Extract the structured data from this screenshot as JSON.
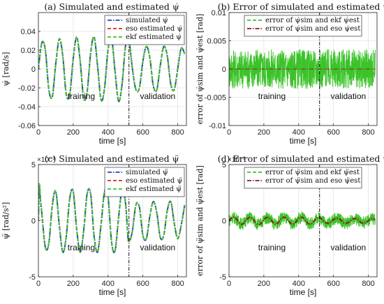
{
  "chart_data": [
    {
      "type": "line",
      "title": "(a) Simulated and estimated ψ̇",
      "xlabel": "time [s]",
      "ylabel": "ψ̇ [rad/s]",
      "xlim": [
        0,
        850
      ],
      "ylim": [
        -0.06,
        0.06
      ],
      "xticks": [
        0,
        200,
        400,
        600,
        800
      ],
      "yticks": [
        -0.06,
        -0.04,
        -0.02,
        0,
        0.02,
        0.04
      ],
      "ytick_labels": [
        "-0.06",
        "-0.04",
        "-0.02",
        "0",
        "0.02",
        "0.04"
      ],
      "exponent_label": "",
      "grid": true,
      "legend_position": "top-right",
      "split_x": 520,
      "annotations": [
        "training",
        "validation"
      ],
      "series": [
        {
          "name": "simulated ψ̇",
          "color": "#1f3fd0",
          "style": "dashdot",
          "x": [
            0,
            20,
            40,
            60,
            80,
            100,
            120,
            140,
            160,
            180,
            200,
            220,
            240,
            260,
            280,
            300,
            320,
            340,
            360,
            380,
            400,
            420,
            440,
            460,
            480,
            500,
            520,
            540,
            560,
            580,
            600,
            620,
            640,
            660,
            680,
            700,
            720,
            740,
            760,
            780,
            800,
            820,
            840
          ],
          "y": [
            0,
            0.028,
            0.02,
            -0.022,
            -0.029,
            0.006,
            0.032,
            0.014,
            -0.027,
            -0.027,
            0.011,
            0.034,
            0.008,
            -0.031,
            -0.024,
            0.017,
            0.034,
            0.003,
            -0.033,
            -0.02,
            0.021,
            0.033,
            -0.002,
            -0.034,
            -0.017,
            0.024,
            0.03,
            0,
            -0.022,
            -0.02,
            0.008,
            0.024,
            0.012,
            -0.018,
            -0.022,
            0.004,
            0.024,
            0.014,
            -0.016,
            -0.022,
            0,
            0.022,
            0.016
          ]
        },
        {
          "name": "eso estimated ψ̇",
          "color": "#d02a1a",
          "style": "dashed",
          "x": [
            0,
            20,
            40,
            60,
            80,
            100,
            120,
            140,
            160,
            180,
            200,
            220,
            240,
            260,
            280,
            300,
            320,
            340,
            360,
            380,
            400,
            420,
            440,
            460,
            480,
            500,
            520,
            540,
            560,
            580,
            600,
            620,
            640,
            660,
            680,
            700,
            720,
            740,
            760,
            780,
            800,
            820,
            840
          ],
          "y": [
            0,
            0.028,
            0.02,
            -0.022,
            -0.029,
            0.006,
            0.032,
            0.014,
            -0.027,
            -0.027,
            0.011,
            0.034,
            0.008,
            -0.031,
            -0.024,
            0.017,
            0.034,
            0.003,
            -0.033,
            -0.02,
            0.021,
            0.033,
            -0.002,
            -0.034,
            -0.017,
            0.024,
            0.03,
            0,
            -0.022,
            -0.02,
            0.008,
            0.024,
            0.012,
            -0.018,
            -0.022,
            0.004,
            0.024,
            0.014,
            -0.016,
            -0.022,
            0,
            0.022,
            0.016
          ]
        },
        {
          "name": "ekf estimated ψ̇",
          "color": "#3cc32a",
          "style": "dashed",
          "x": [
            0,
            20,
            40,
            60,
            80,
            100,
            120,
            140,
            160,
            180,
            200,
            220,
            240,
            260,
            280,
            300,
            320,
            340,
            360,
            380,
            400,
            420,
            440,
            460,
            480,
            500,
            520,
            540,
            560,
            580,
            600,
            620,
            640,
            660,
            680,
            700,
            720,
            740,
            760,
            780,
            800,
            820,
            840
          ],
          "y": [
            0,
            0.028,
            0.02,
            -0.022,
            -0.029,
            0.006,
            0.032,
            0.014,
            -0.027,
            -0.027,
            0.011,
            0.034,
            0.008,
            -0.031,
            -0.024,
            0.017,
            0.034,
            0.003,
            -0.033,
            -0.02,
            0.021,
            0.033,
            -0.002,
            -0.034,
            -0.017,
            0.024,
            0.03,
            0,
            -0.022,
            -0.02,
            0.008,
            0.024,
            0.012,
            -0.018,
            -0.022,
            0.004,
            0.024,
            0.014,
            -0.016,
            -0.022,
            0,
            0.022,
            0.016
          ]
        }
      ]
    },
    {
      "type": "line",
      "title": "(b) Error of simulated and estimated ψ̇",
      "xlabel": "time [s]",
      "ylabel": "error of ψ̇sim and ψ̇est [rad]",
      "xlim": [
        0,
        850
      ],
      "ylim": [
        -0.01,
        0.01
      ],
      "xticks": [
        0,
        200,
        400,
        600,
        800
      ],
      "yticks": [
        -0.01,
        -0.005,
        0,
        0.005,
        0.01
      ],
      "ytick_labels": [
        "-0.01",
        "-0.005",
        "0",
        "0.005",
        "0.01"
      ],
      "exponent_label": "",
      "grid": true,
      "legend_position": "top",
      "split_x": 520,
      "annotations": [
        "training",
        "validation"
      ],
      "series": [
        {
          "name": "error of ψ̇sim and ekf ψ̇est",
          "color": "#3cc32a",
          "style": "noise",
          "x": [
            0,
            840
          ],
          "y": [
            0,
            0
          ],
          "noise_amplitude": 0.0035
        },
        {
          "name": "error of ψ̇sim and eso ψ̇est",
          "color": "#8a1c1c",
          "style": "dashdot",
          "x": [
            0,
            840
          ],
          "y": [
            0,
            0
          ]
        }
      ]
    },
    {
      "type": "line",
      "title": "(c) Simulated and estimated ψ̈",
      "xlabel": "time [s]",
      "ylabel": "ψ̈ [rad/s²]",
      "xlim": [
        0,
        850
      ],
      "ylim": [
        -5,
        5
      ],
      "xticks": [
        0,
        200,
        400,
        600,
        800
      ],
      "yticks": [
        -5,
        0,
        5
      ],
      "ytick_labels": [
        "-5",
        "0",
        "5"
      ],
      "exponent_label": "×10⁻³",
      "grid": true,
      "legend_position": "top-right",
      "split_x": 520,
      "annotations": [
        "training",
        "validation"
      ],
      "series": [
        {
          "name": "simulated ψ̈",
          "color": "#1f3fd0",
          "style": "dashdot",
          "x": [
            0,
            5,
            10,
            20,
            40,
            60,
            80,
            100,
            120,
            140,
            160,
            180,
            200,
            220,
            240,
            260,
            280,
            300,
            320,
            340,
            360,
            380,
            400,
            420,
            440,
            460,
            480,
            500,
            515,
            520,
            525,
            540,
            560,
            580,
            600,
            620,
            640,
            660,
            680,
            700,
            720,
            740,
            760,
            780,
            800,
            820,
            840
          ],
          "y": [
            0,
            3.2,
            2.2,
            0.6,
            -2.4,
            -2,
            1.4,
            2.6,
            -0.4,
            -2.8,
            -1.4,
            2,
            2.6,
            -0.8,
            -2.8,
            -0.9,
            2.4,
            2.4,
            -1.4,
            -2.8,
            -0.3,
            2.6,
            2.1,
            -1.9,
            -2.7,
            0.2,
            2.7,
            1.6,
            -1.6,
            -1.6,
            -1.8,
            -0.9,
            1.4,
            1.2,
            -1.3,
            -1.6,
            0.4,
            1.7,
            0.7,
            -1.5,
            -1.3,
            0.9,
            1.7,
            -0.2,
            -1.6,
            -0.4,
            1.4
          ]
        },
        {
          "name": "eso estimated ψ̈",
          "color": "#d02a1a",
          "style": "dashed",
          "x": [
            0,
            5,
            10,
            20,
            40,
            60,
            80,
            100,
            120,
            140,
            160,
            180,
            200,
            220,
            240,
            260,
            280,
            300,
            320,
            340,
            360,
            380,
            400,
            420,
            440,
            460,
            480,
            500,
            515,
            520,
            525,
            540,
            560,
            580,
            600,
            620,
            640,
            660,
            680,
            700,
            720,
            740,
            760,
            780,
            800,
            820,
            840
          ],
          "y": [
            0,
            3.2,
            2.2,
            0.6,
            -2.4,
            -2,
            1.4,
            2.6,
            -0.4,
            -2.8,
            -1.4,
            2,
            2.6,
            -0.8,
            -2.8,
            -0.9,
            2.4,
            2.4,
            -1.4,
            -2.8,
            -0.3,
            2.6,
            2.1,
            -1.9,
            -2.7,
            0.2,
            2.7,
            1.6,
            -1.6,
            -1.6,
            -1.8,
            -0.9,
            1.4,
            1.2,
            -1.3,
            -1.6,
            0.4,
            1.7,
            0.7,
            -1.5,
            -1.3,
            0.9,
            1.7,
            -0.2,
            -1.6,
            -0.4,
            1.4
          ]
        },
        {
          "name": "ekf estimated ψ̈",
          "color": "#3cc32a",
          "style": "dashed",
          "x": [
            0,
            5,
            10,
            20,
            40,
            60,
            80,
            100,
            120,
            140,
            160,
            180,
            200,
            220,
            240,
            260,
            280,
            300,
            320,
            340,
            360,
            380,
            400,
            420,
            440,
            460,
            480,
            500,
            515,
            520,
            525,
            540,
            560,
            580,
            600,
            620,
            640,
            660,
            680,
            700,
            720,
            740,
            760,
            780,
            800,
            820,
            840
          ],
          "y": [
            0,
            3.2,
            2.2,
            0.6,
            -2.4,
            -2,
            1.4,
            2.6,
            -0.4,
            -2.8,
            -1.4,
            2,
            2.6,
            -0.8,
            -2.8,
            -0.9,
            2.4,
            2.4,
            -1.4,
            -2.8,
            -0.3,
            2.6,
            2.1,
            -1.9,
            -2.7,
            0.2,
            2.7,
            1.6,
            -1.6,
            -1.6,
            -1.8,
            -0.9,
            1.4,
            1.2,
            -1.3,
            -1.6,
            0.4,
            1.7,
            0.7,
            -1.5,
            -1.3,
            0.9,
            1.7,
            -0.2,
            -1.6,
            -0.4,
            1.4
          ]
        }
      ]
    },
    {
      "type": "line",
      "title": "(d) Error of simulated and estimated ψ̈",
      "xlabel": "time [s]",
      "ylabel": "error of ψ̈sim and ψ̈est [rad]",
      "xlim": [
        0,
        850
      ],
      "ylim": [
        -5,
        5
      ],
      "xticks": [
        0,
        200,
        400,
        600,
        800
      ],
      "yticks": [
        -5,
        0,
        5
      ],
      "ytick_labels": [
        "-5",
        "0",
        "5"
      ],
      "exponent_label": "×10⁻³",
      "grid": true,
      "legend_position": "top",
      "split_x": 520,
      "annotations": [
        "training",
        "validation"
      ],
      "series": [
        {
          "name": "error of ψ̈sim and ekf ψ̈est",
          "color": "#3cc32a",
          "style": "noise",
          "x": [
            0,
            20,
            40,
            60,
            80,
            100,
            120,
            140,
            160,
            180,
            200,
            220,
            240,
            260,
            280,
            300,
            320,
            340,
            360,
            380,
            400,
            420,
            440,
            460,
            480,
            500,
            520,
            540,
            560,
            580,
            600,
            620,
            640,
            660,
            680,
            700,
            720,
            740,
            760,
            780,
            800,
            820,
            840
          ],
          "y": [
            0,
            0.3,
            0.2,
            -0.2,
            -0.3,
            0.1,
            0.3,
            0.1,
            -0.3,
            -0.3,
            0.1,
            0.3,
            0.1,
            -0.3,
            -0.2,
            0.2,
            0.3,
            0,
            -0.3,
            -0.2,
            0.2,
            0.3,
            0,
            -0.3,
            -0.2,
            0.2,
            0.3,
            0,
            -0.2,
            -0.2,
            0.1,
            0.2,
            0.1,
            -0.2,
            -0.2,
            0,
            0.2,
            0.1,
            -0.2,
            -0.2,
            0,
            0.2,
            0.1
          ],
          "noise_amplitude": 0.55
        },
        {
          "name": "error of ψ̈sim and eso ψ̈est",
          "color": "#8a1c1c",
          "style": "dashdot",
          "x": [
            0,
            20,
            40,
            60,
            80,
            100,
            120,
            140,
            160,
            180,
            200,
            220,
            240,
            260,
            280,
            300,
            320,
            340,
            360,
            380,
            400,
            420,
            440,
            460,
            480,
            500,
            520,
            540,
            560,
            580,
            600,
            620,
            640,
            660,
            680,
            700,
            720,
            740,
            760,
            780,
            800,
            820,
            840
          ],
          "y": [
            0,
            0.3,
            0.2,
            -0.2,
            -0.3,
            0.1,
            0.3,
            0.1,
            -0.3,
            -0.3,
            0.1,
            0.3,
            0.1,
            -0.3,
            -0.2,
            0.2,
            0.3,
            0,
            -0.3,
            -0.2,
            0.2,
            0.3,
            0,
            -0.3,
            -0.2,
            0.2,
            0.3,
            0,
            -0.2,
            -0.2,
            0.1,
            0.2,
            0.1,
            -0.2,
            -0.2,
            0,
            0.2,
            0.1,
            -0.2,
            -0.2,
            0,
            0.2,
            0.1
          ]
        }
      ]
    }
  ]
}
